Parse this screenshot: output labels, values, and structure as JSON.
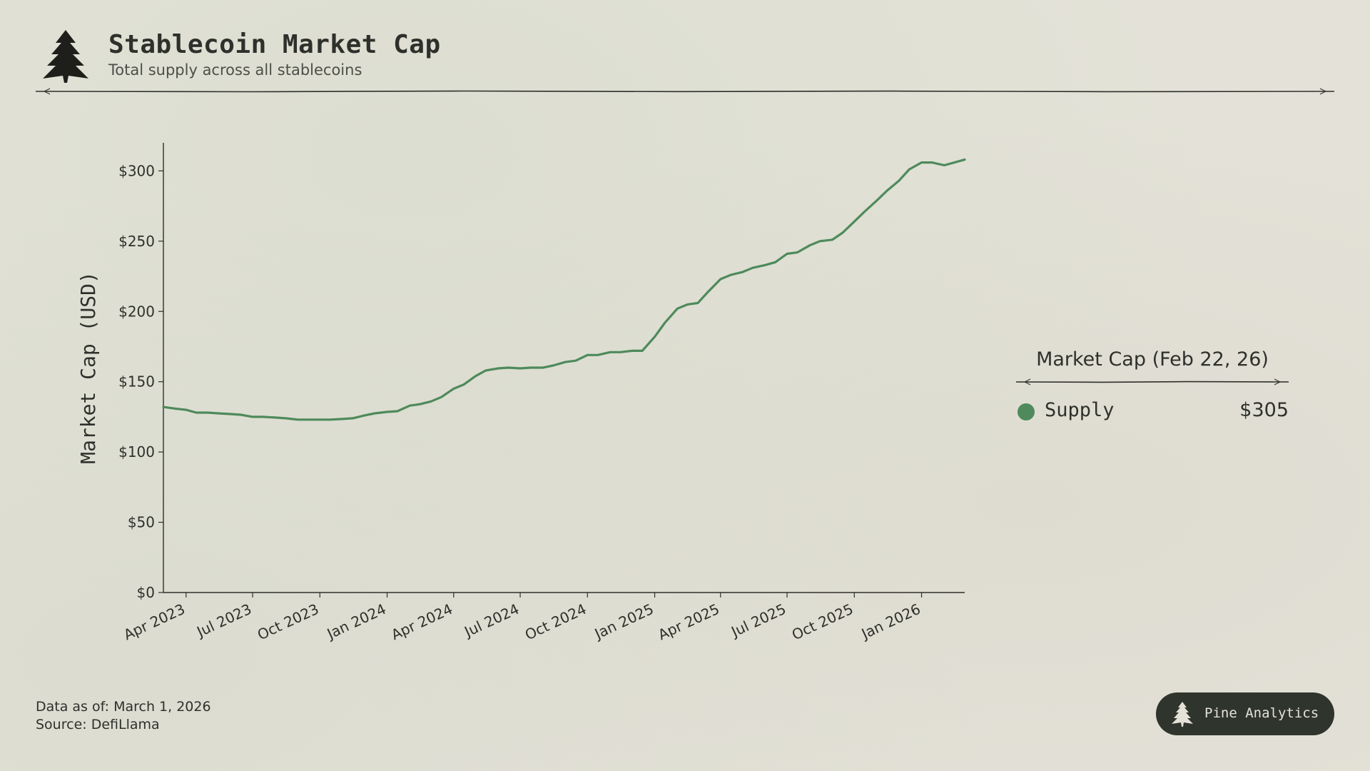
{
  "header": {
    "title": "Stablecoin Market Cap",
    "subtitle": "Total supply across all stablecoins",
    "logo_icon": "pine-tree-icon"
  },
  "colors": {
    "background": "#e4e2d8",
    "line": "#4e8a5b",
    "text": "#2e302b",
    "badge": "#2f342c"
  },
  "chart_data": {
    "type": "line",
    "title": "",
    "xlabel": "",
    "ylabel": "Market Cap (USD)",
    "ylim": [
      0,
      320
    ],
    "y_ticks": [
      0,
      50,
      100,
      150,
      200,
      250,
      300
    ],
    "y_tick_labels": [
      "$0",
      "$50",
      "$100",
      "$150",
      "$200",
      "$250",
      "$300"
    ],
    "x_ticks": [
      "2023-04-01",
      "2023-07-01",
      "2023-10-01",
      "2024-01-01",
      "2024-04-01",
      "2024-07-01",
      "2024-10-01",
      "2025-01-01",
      "2025-04-01",
      "2025-07-01",
      "2025-10-01",
      "2026-01-01"
    ],
    "x_tick_labels": [
      "Apr 2023",
      "Jul 2023",
      "Oct 2023",
      "Jan 2024",
      "Apr 2024",
      "Jul 2024",
      "Oct 2024",
      "Jan 2025",
      "Apr 2025",
      "Jul 2025",
      "Oct 2025",
      "Jan 2026"
    ],
    "xlim": [
      "2023-03-01",
      "2026-03-01"
    ],
    "grid": false,
    "legend_position": "right",
    "series": [
      {
        "name": "Supply",
        "color": "#4e8a5b",
        "points": [
          [
            "2023-03-01",
            132
          ],
          [
            "2023-03-15",
            131
          ],
          [
            "2023-04-01",
            130
          ],
          [
            "2023-04-15",
            128
          ],
          [
            "2023-05-01",
            128
          ],
          [
            "2023-05-15",
            127.5
          ],
          [
            "2023-06-01",
            127
          ],
          [
            "2023-06-15",
            126.5
          ],
          [
            "2023-07-01",
            125
          ],
          [
            "2023-07-15",
            125
          ],
          [
            "2023-08-01",
            124.5
          ],
          [
            "2023-08-15",
            124
          ],
          [
            "2023-09-01",
            123
          ],
          [
            "2023-09-15",
            123
          ],
          [
            "2023-10-01",
            123
          ],
          [
            "2023-10-15",
            123
          ],
          [
            "2023-11-01",
            123.5
          ],
          [
            "2023-11-15",
            124
          ],
          [
            "2023-12-01",
            126
          ],
          [
            "2023-12-15",
            127.5
          ],
          [
            "2024-01-01",
            128.5
          ],
          [
            "2024-01-15",
            129
          ],
          [
            "2024-02-01",
            133
          ],
          [
            "2024-02-15",
            134
          ],
          [
            "2024-03-01",
            136
          ],
          [
            "2024-03-15",
            139
          ],
          [
            "2024-04-01",
            145
          ],
          [
            "2024-04-15",
            148
          ],
          [
            "2024-05-01",
            154
          ],
          [
            "2024-05-15",
            158
          ],
          [
            "2024-06-01",
            159.5
          ],
          [
            "2024-06-15",
            160
          ],
          [
            "2024-07-01",
            159.5
          ],
          [
            "2024-07-15",
            160
          ],
          [
            "2024-08-01",
            160
          ],
          [
            "2024-08-15",
            161.5
          ],
          [
            "2024-09-01",
            164
          ],
          [
            "2024-09-15",
            165
          ],
          [
            "2024-10-01",
            169
          ],
          [
            "2024-10-15",
            169
          ],
          [
            "2024-11-01",
            171
          ],
          [
            "2024-11-15",
            171
          ],
          [
            "2024-12-01",
            172
          ],
          [
            "2024-12-15",
            172
          ],
          [
            "2025-01-01",
            182
          ],
          [
            "2025-01-15",
            192
          ],
          [
            "2025-02-01",
            202
          ],
          [
            "2025-02-15",
            205
          ],
          [
            "2025-03-01",
            206
          ],
          [
            "2025-03-15",
            214
          ],
          [
            "2025-04-01",
            223
          ],
          [
            "2025-04-15",
            226
          ],
          [
            "2025-05-01",
            228
          ],
          [
            "2025-05-15",
            231
          ],
          [
            "2025-06-01",
            233
          ],
          [
            "2025-06-15",
            235
          ],
          [
            "2025-07-01",
            241
          ],
          [
            "2025-07-15",
            242
          ],
          [
            "2025-08-01",
            247
          ],
          [
            "2025-08-15",
            250
          ],
          [
            "2025-09-01",
            251
          ],
          [
            "2025-09-15",
            256
          ],
          [
            "2025-10-01",
            264
          ],
          [
            "2025-10-15",
            271
          ],
          [
            "2025-11-01",
            279
          ],
          [
            "2025-11-15",
            286
          ],
          [
            "2025-12-01",
            293
          ],
          [
            "2025-12-15",
            301
          ],
          [
            "2026-01-01",
            306
          ],
          [
            "2026-01-15",
            306
          ],
          [
            "2026-02-01",
            304
          ],
          [
            "2026-02-15",
            306
          ],
          [
            "2026-03-01",
            308
          ]
        ]
      }
    ]
  },
  "legend": {
    "title": "Market Cap (Feb 22, 26)",
    "items": [
      {
        "name": "Supply",
        "value": "$305",
        "color": "#4e8a5b"
      }
    ]
  },
  "footer": {
    "data_as_of": "Data as of: March 1, 2026",
    "source": "Source: DefiLlama"
  },
  "brand": {
    "name": "Pine Analytics",
    "icon": "pine-tree-icon"
  }
}
